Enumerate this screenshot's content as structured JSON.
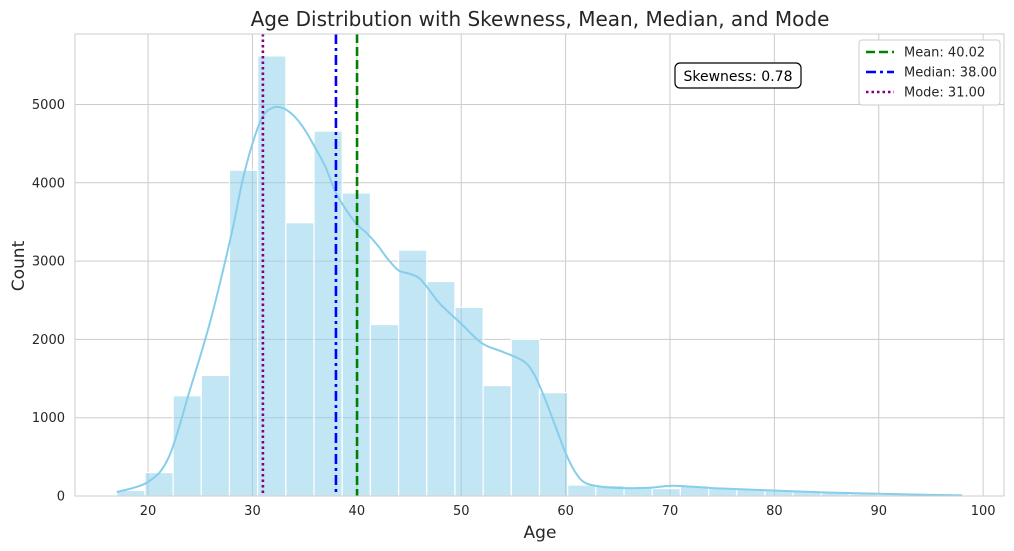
{
  "chart_data": {
    "type": "bar",
    "title": "Age Distribution with Skewness, Mean, Median, and Mode",
    "xlabel": "Age",
    "ylabel": "Count",
    "xlim": [
      13,
      102
    ],
    "ylim": [
      0,
      5900
    ],
    "x_ticks": [
      20,
      30,
      40,
      50,
      60,
      70,
      80,
      90,
      100
    ],
    "y_ticks": [
      0,
      1000,
      2000,
      3000,
      4000,
      5000
    ],
    "grid": true,
    "bin_edges": [
      17,
      19.7,
      22.4,
      25.1,
      27.8,
      30.5,
      33.2,
      35.9,
      38.6,
      41.3,
      44,
      46.7,
      49.4,
      52.1,
      54.8,
      57.5,
      60.2,
      62.9,
      65.6,
      68.3,
      71,
      73.7,
      76.4,
      79.1,
      81.8,
      84.5,
      87.2,
      89.9,
      92.6,
      95.3,
      98
    ],
    "counts": [
      70,
      300,
      1280,
      1540,
      4160,
      5620,
      3490,
      4660,
      3870,
      2190,
      3140,
      2740,
      2410,
      1410,
      2000,
      1320,
      140,
      135,
      115,
      95,
      130,
      95,
      85,
      75,
      60,
      40,
      28,
      20,
      12,
      8
    ],
    "kde": {
      "x": [
        17,
        20,
        22,
        24,
        26,
        28,
        29,
        30,
        31,
        32,
        33,
        34,
        35,
        36,
        37,
        38,
        39,
        40,
        41,
        42,
        43,
        44,
        45,
        46,
        47,
        48,
        50,
        52,
        54,
        56,
        57,
        58,
        59,
        60,
        61,
        62,
        64,
        66,
        68,
        70,
        72,
        75,
        80,
        85,
        90,
        95,
        98
      ],
      "y": [
        50,
        180,
        500,
        1350,
        2250,
        3350,
        4000,
        4500,
        4850,
        4960,
        4950,
        4850,
        4680,
        4450,
        4200,
        3870,
        3650,
        3470,
        3350,
        3200,
        3020,
        2880,
        2840,
        2780,
        2620,
        2450,
        2200,
        1950,
        1840,
        1720,
        1550,
        1250,
        900,
        550,
        290,
        160,
        110,
        100,
        105,
        130,
        120,
        95,
        70,
        45,
        28,
        15,
        8
      ]
    },
    "lines": [
      {
        "name": "Mean: 40.02",
        "value": 40.02,
        "color": "#008000",
        "style": "dashed"
      },
      {
        "name": "Median: 38.00",
        "value": 38.0,
        "color": "#0000ff",
        "style": "dashdot"
      },
      {
        "name": "Mode: 31.00",
        "value": 31.0,
        "color": "#800080",
        "style": "dotted"
      }
    ],
    "annotation": "Skewness: 0.78",
    "bar_color": "#87ceeb",
    "legend_position": "top-right"
  }
}
